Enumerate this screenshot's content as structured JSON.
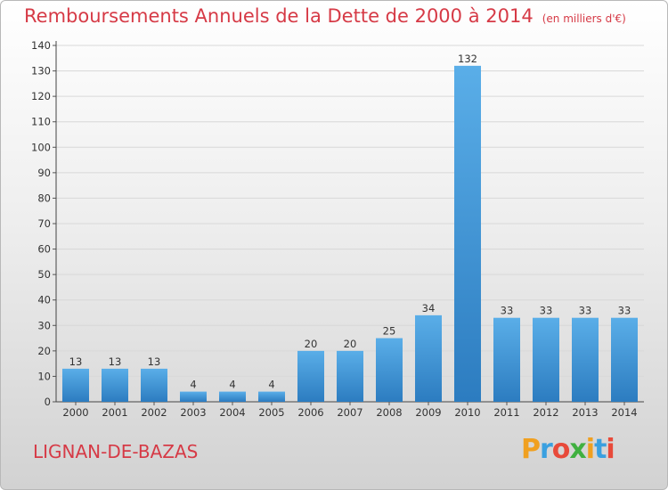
{
  "title": "Remboursements Annuels de la Dette de 2000 à 2014",
  "unit": "(en milliers d'€)",
  "commune": "LIGNAN-DE-BAZAS",
  "logo": "Proxiti",
  "colors": {
    "title": "#d63a46",
    "bar_light": "#5aaee8",
    "bar_dark": "#2c7cc0",
    "grid": "#d8d8d8",
    "logo_letters": [
      "#f0a020",
      "#3aa0e0",
      "#e84a3a",
      "#40b040",
      "#f0a020",
      "#3aa0e0",
      "#e84a3a"
    ]
  },
  "chart_data": {
    "type": "bar",
    "title": "Remboursements Annuels de la Dette de 2000 à 2014",
    "categories": [
      "2000",
      "2001",
      "2002",
      "2003",
      "2004",
      "2005",
      "2006",
      "2007",
      "2008",
      "2009",
      "2010",
      "2011",
      "2012",
      "2013",
      "2014"
    ],
    "values": [
      13,
      13,
      13,
      4,
      4,
      4,
      20,
      20,
      25,
      34,
      132,
      33,
      33,
      33,
      33
    ],
    "ylim": [
      0,
      140
    ],
    "yticks": [
      0,
      10,
      20,
      30,
      40,
      50,
      60,
      70,
      80,
      90,
      100,
      110,
      120,
      130,
      140
    ],
    "grid": true,
    "xlabel": "",
    "ylabel": ""
  }
}
